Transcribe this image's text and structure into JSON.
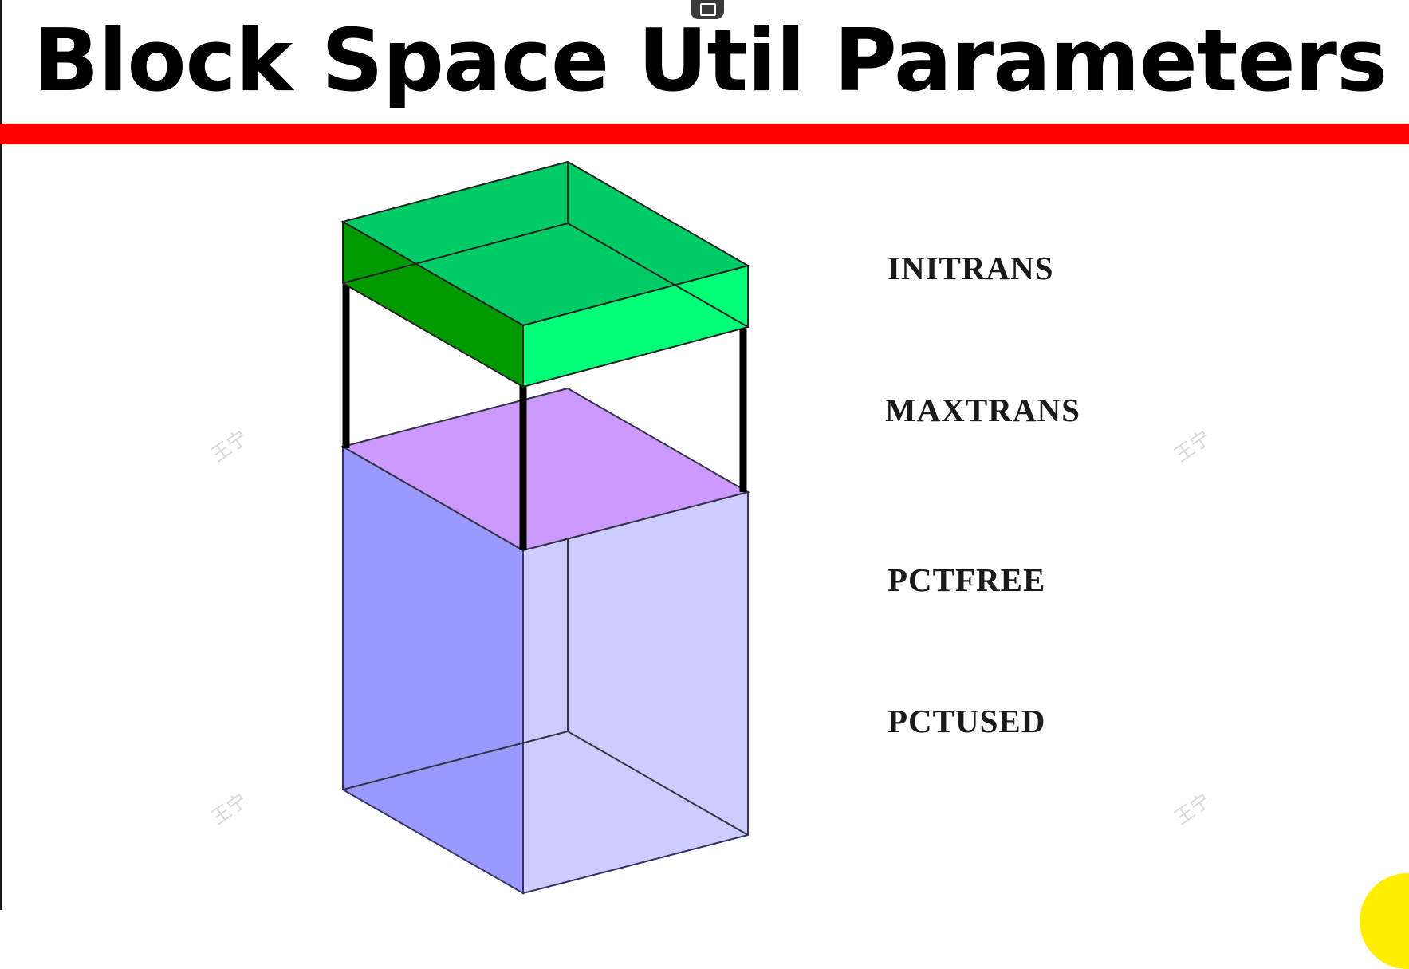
{
  "slide": {
    "title": "Block Space Util Parameters"
  },
  "parameters": [
    {
      "label": "INITRANS"
    },
    {
      "label": "MAXTRANS"
    },
    {
      "label": "PCTFREE"
    },
    {
      "label": "PCTUSED"
    }
  ],
  "watermark": {
    "text": "王宁"
  },
  "colors": {
    "title_rule": "#ff0000",
    "header_block_top": "#00cc66",
    "header_block_front": "#00ff77",
    "header_block_side": "#009933",
    "free_space_top": "#cc99ff",
    "data_block_left": "#9999ff",
    "data_block_right": "#ccccff"
  },
  "icons": {
    "top_center": "screen-share-icon"
  }
}
